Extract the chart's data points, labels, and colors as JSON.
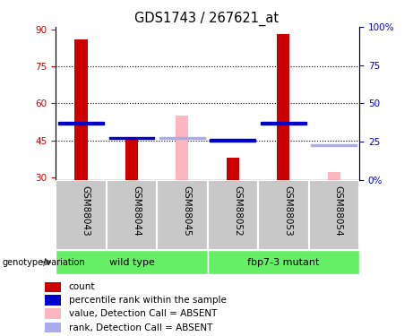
{
  "title": "GDS1743 / 267621_at",
  "samples": [
    "GSM88043",
    "GSM88044",
    "GSM88045",
    "GSM88052",
    "GSM88053",
    "GSM88054"
  ],
  "count_values": [
    86,
    46,
    null,
    38,
    88,
    null
  ],
  "rank_values": [
    52,
    46,
    null,
    45,
    52,
    null
  ],
  "count_absent_values": [
    null,
    null,
    55,
    null,
    null,
    32
  ],
  "rank_absent_values": [
    null,
    null,
    46,
    null,
    null,
    43
  ],
  "ylim_min": 29,
  "ylim_max": 91,
  "yticks_left": [
    30,
    45,
    60,
    75,
    90
  ],
  "yticks_right": [
    0,
    25,
    50,
    75,
    100
  ],
  "right_axis_labels": [
    "0%",
    "25",
    "50",
    "75",
    "100%"
  ],
  "count_color": "#CC0000",
  "rank_color": "#0000CC",
  "absent_count_color": "#FFB6C1",
  "absent_rank_color": "#AAAAEE",
  "grid_ticks": [
    45,
    60,
    75
  ],
  "bar_width": 0.25,
  "rank_sq_half": 0.9,
  "group_wildtype": "wild type",
  "group_mutant": "fbp7-3 mutant",
  "group_label": "genotype/variation",
  "legend_items": [
    {
      "color": "#CC0000",
      "label": "count"
    },
    {
      "color": "#0000CC",
      "label": "percentile rank within the sample"
    },
    {
      "color": "#FFB6C1",
      "label": "value, Detection Call = ABSENT"
    },
    {
      "color": "#AAAAEE",
      "label": "rank, Detection Call = ABSENT"
    }
  ],
  "cell_bg": "#C8C8C8",
  "plot_bg": "#FFFFFF",
  "green_color": "#66EE66"
}
